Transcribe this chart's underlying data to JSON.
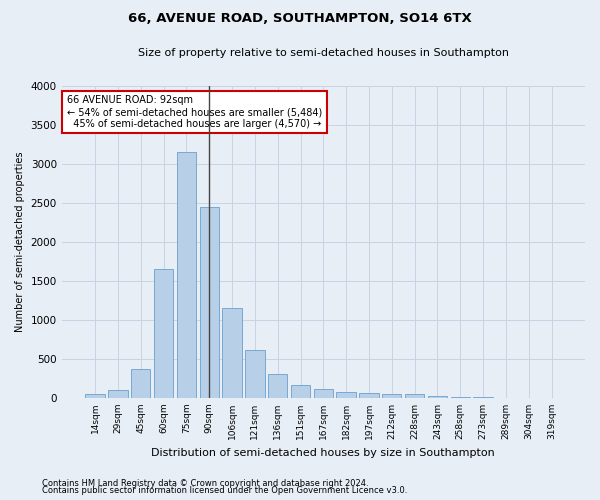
{
  "title": "66, AVENUE ROAD, SOUTHAMPTON, SO14 6TX",
  "subtitle": "Size of property relative to semi-detached houses in Southampton",
  "xlabel": "Distribution of semi-detached houses by size in Southampton",
  "ylabel": "Number of semi-detached properties",
  "footnote1": "Contains HM Land Registry data © Crown copyright and database right 2024.",
  "footnote2": "Contains public sector information licensed under the Open Government Licence v3.0.",
  "bar_color": "#b8cfe8",
  "bar_edge_color": "#6aa0cc",
  "grid_color": "#c8d4e4",
  "background_color": "#e8eef6",
  "annotation_box_color": "#ffffff",
  "annotation_border_color": "#cc0000",
  "vline_color": "#444444",
  "categories": [
    "14sqm",
    "29sqm",
    "45sqm",
    "60sqm",
    "75sqm",
    "90sqm",
    "106sqm",
    "121sqm",
    "136sqm",
    "151sqm",
    "167sqm",
    "182sqm",
    "197sqm",
    "212sqm",
    "228sqm",
    "243sqm",
    "258sqm",
    "273sqm",
    "289sqm",
    "304sqm",
    "319sqm"
  ],
  "values": [
    50,
    100,
    370,
    1650,
    3150,
    2450,
    1150,
    620,
    310,
    160,
    110,
    80,
    60,
    55,
    45,
    30,
    15,
    10,
    5,
    3,
    2
  ],
  "property_label": "66 AVENUE ROAD: 92sqm",
  "pct_smaller": 54,
  "n_smaller": 5484,
  "pct_larger": 45,
  "n_larger": 4570,
  "vline_bin_index": 5,
  "ylim": [
    0,
    4000
  ],
  "yticks": [
    0,
    500,
    1000,
    1500,
    2000,
    2500,
    3000,
    3500,
    4000
  ]
}
